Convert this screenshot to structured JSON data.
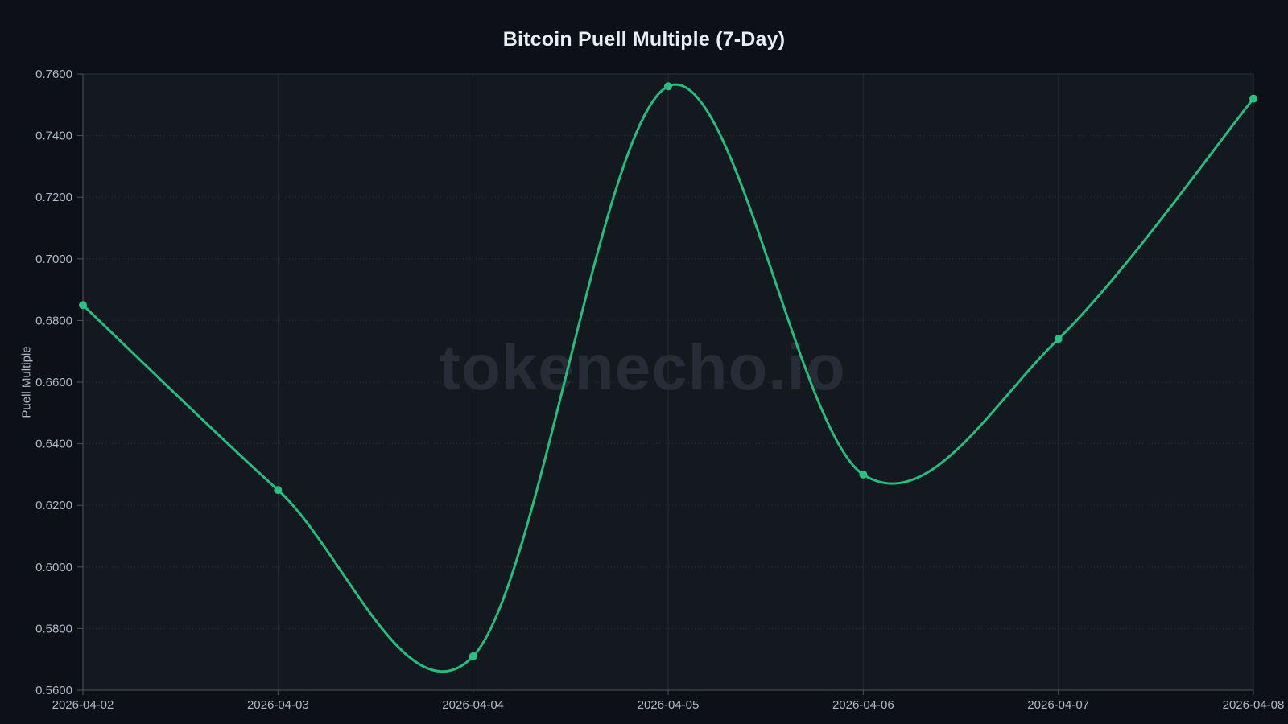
{
  "page": {
    "watermark": "tokenecho.io"
  },
  "chart_data": {
    "type": "line",
    "title": "Bitcoin Puell Multiple (7-Day)",
    "xlabel": "",
    "ylabel": "Puell Multiple",
    "x": [
      "2026-04-02",
      "2026-04-03",
      "2026-04-04",
      "2026-04-05",
      "2026-04-06",
      "2026-04-07",
      "2026-04-08"
    ],
    "series": [
      {
        "name": "Puell Multiple",
        "values": [
          0.685,
          0.625,
          0.571,
          0.756,
          0.63,
          0.674,
          0.752
        ]
      }
    ],
    "ylim": [
      0.56,
      0.76
    ],
    "ytick_step": 0.02,
    "ytick_labels": [
      "0.5600",
      "0.5800",
      "0.6000",
      "0.6200",
      "0.6400",
      "0.6600",
      "0.6800",
      "0.7000",
      "0.7200",
      "0.7400",
      "0.7600"
    ],
    "grid": true,
    "legend": false,
    "smooth": true,
    "marker": "circle",
    "colors": {
      "line": "#27bc7e",
      "marker": "#2cc184",
      "background": "#0d1016",
      "plot_background": "#14181f",
      "grid_h": "#2c323d",
      "grid_v": "#242931",
      "border": "#2b303a",
      "axis": "#4d5563",
      "tick_text": "#aeb8c6",
      "title_text": "#e9edf4",
      "watermark": "#272d37"
    }
  }
}
